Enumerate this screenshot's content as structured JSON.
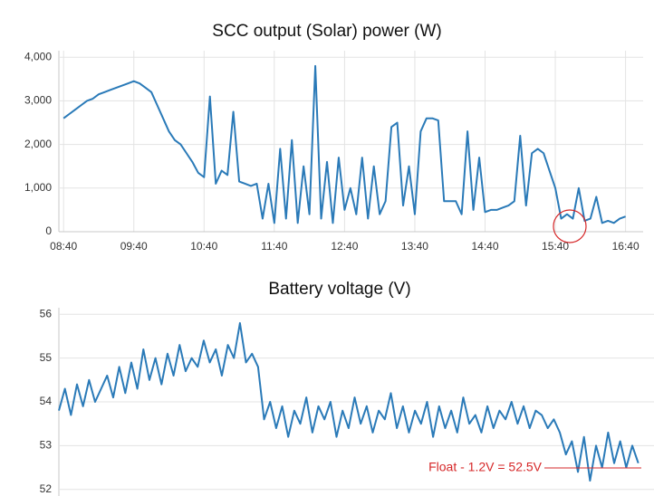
{
  "chart_data": [
    {
      "type": "line",
      "title": "SCC output (Solar) power (W)",
      "color": "#2a7ab8",
      "grid": true,
      "xlim": [
        "08:36",
        "16:55"
      ],
      "xticks": [
        "08:40",
        "09:40",
        "10:40",
        "11:40",
        "12:40",
        "13:40",
        "14:40",
        "15:40",
        "16:40"
      ],
      "ylim": [
        0,
        4150
      ],
      "yticks": [
        0,
        {
          "value": 1000,
          "label": "1,000"
        },
        {
          "value": 2000,
          "label": "2,000"
        },
        {
          "value": 3000,
          "label": "3,000"
        },
        {
          "value": 4000,
          "label": "4,000"
        }
      ],
      "x": [
        "08:40",
        "08:45",
        "08:50",
        "08:55",
        "09:00",
        "09:05",
        "09:10",
        "09:15",
        "09:20",
        "09:25",
        "09:30",
        "09:35",
        "09:40",
        "09:45",
        "09:50",
        "09:55",
        "10:00",
        "10:05",
        "10:10",
        "10:15",
        "10:20",
        "10:25",
        "10:30",
        "10:35",
        "10:40",
        "10:45",
        "10:50",
        "10:55",
        "11:00",
        "11:05",
        "11:10",
        "11:15",
        "11:20",
        "11:25",
        "11:30",
        "11:35",
        "11:40",
        "11:45",
        "11:50",
        "11:55",
        "12:00",
        "12:05",
        "12:10",
        "12:15",
        "12:20",
        "12:25",
        "12:30",
        "12:35",
        "12:40",
        "12:45",
        "12:50",
        "12:55",
        "13:00",
        "13:05",
        "13:10",
        "13:15",
        "13:20",
        "13:25",
        "13:30",
        "13:35",
        "13:40",
        "13:45",
        "13:50",
        "13:55",
        "14:00",
        "14:05",
        "14:10",
        "14:15",
        "14:20",
        "14:25",
        "14:30",
        "14:35",
        "14:40",
        "14:45",
        "14:50",
        "14:55",
        "15:00",
        "15:05",
        "15:10",
        "15:15",
        "15:20",
        "15:25",
        "15:30",
        "15:35",
        "15:40",
        "15:45",
        "15:50",
        "15:55",
        "16:00",
        "16:05",
        "16:10",
        "16:15",
        "16:20",
        "16:25",
        "16:30",
        "16:35",
        "16:40"
      ],
      "values": [
        2600,
        2700,
        2800,
        2900,
        3000,
        3050,
        3150,
        3200,
        3250,
        3300,
        3350,
        3400,
        3450,
        3400,
        3300,
        3200,
        2900,
        2600,
        2300,
        2100,
        2000,
        1800,
        1600,
        1350,
        1250,
        3100,
        1100,
        1400,
        1300,
        2750,
        1150,
        1100,
        1050,
        1100,
        300,
        1100,
        200,
        1900,
        300,
        2100,
        200,
        1500,
        400,
        3800,
        300,
        1600,
        200,
        1700,
        500,
        1000,
        400,
        1700,
        300,
        1500,
        400,
        700,
        2400,
        2500,
        600,
        1500,
        400,
        2300,
        2600,
        2600,
        2550,
        700,
        700,
        700,
        400,
        2300,
        500,
        1700,
        450,
        500,
        500,
        550,
        600,
        700,
        2200,
        600,
        1800,
        1900,
        1800,
        1400,
        1000,
        300,
        400,
        300,
        1000,
        250,
        300,
        800,
        200,
        250,
        200,
        300,
        350
      ]
    },
    {
      "type": "line",
      "title": "Battery voltage (V)",
      "color": "#2a7ab8",
      "grid": true,
      "xlim": [
        "08:40",
        "16:53"
      ],
      "ylim": [
        51.85,
        56.15
      ],
      "yticks": [
        52,
        53,
        54,
        55,
        56
      ],
      "annotation": "Float - 1.2V = 52.5V",
      "x": [
        "08:40",
        "08:45",
        "08:50",
        "08:55",
        "09:00",
        "09:05",
        "09:10",
        "09:15",
        "09:20",
        "09:25",
        "09:30",
        "09:35",
        "09:40",
        "09:45",
        "09:50",
        "09:55",
        "10:00",
        "10:05",
        "10:10",
        "10:15",
        "10:20",
        "10:25",
        "10:30",
        "10:35",
        "10:40",
        "10:45",
        "10:50",
        "10:55",
        "11:00",
        "11:05",
        "11:10",
        "11:15",
        "11:20",
        "11:25",
        "11:30",
        "11:35",
        "11:40",
        "11:45",
        "11:50",
        "11:55",
        "12:00",
        "12:05",
        "12:10",
        "12:15",
        "12:20",
        "12:25",
        "12:30",
        "12:35",
        "12:40",
        "12:45",
        "12:50",
        "12:55",
        "13:00",
        "13:05",
        "13:10",
        "13:15",
        "13:20",
        "13:25",
        "13:30",
        "13:35",
        "13:40",
        "13:45",
        "13:50",
        "13:55",
        "14:00",
        "14:05",
        "14:10",
        "14:15",
        "14:20",
        "14:25",
        "14:30",
        "14:35",
        "14:40",
        "14:45",
        "14:50",
        "14:55",
        "15:00",
        "15:05",
        "15:10",
        "15:15",
        "15:20",
        "15:25",
        "15:30",
        "15:35",
        "15:40",
        "15:45",
        "15:50",
        "15:55",
        "16:00",
        "16:05",
        "16:10",
        "16:15",
        "16:20",
        "16:25",
        "16:30",
        "16:35",
        "16:40"
      ],
      "values": [
        53.8,
        54.3,
        53.7,
        54.4,
        53.9,
        54.5,
        54.0,
        54.3,
        54.6,
        54.1,
        54.8,
        54.2,
        54.9,
        54.3,
        55.2,
        54.5,
        55.0,
        54.4,
        55.1,
        54.6,
        55.3,
        54.7,
        55.0,
        54.8,
        55.4,
        54.9,
        55.2,
        54.6,
        55.3,
        55.0,
        55.8,
        54.9,
        55.1,
        54.8,
        53.6,
        54.0,
        53.4,
        53.9,
        53.2,
        53.8,
        53.5,
        54.1,
        53.3,
        53.9,
        53.6,
        54.0,
        53.2,
        53.8,
        53.4,
        54.1,
        53.5,
        53.9,
        53.3,
        53.8,
        53.6,
        54.2,
        53.4,
        53.9,
        53.3,
        53.8,
        53.5,
        54.0,
        53.2,
        53.9,
        53.4,
        53.8,
        53.3,
        54.1,
        53.5,
        53.7,
        53.3,
        53.9,
        53.4,
        53.8,
        53.6,
        54.0,
        53.5,
        53.9,
        53.4,
        53.8,
        53.7,
        53.4,
        53.6,
        53.3,
        52.8,
        53.1,
        52.4,
        53.2,
        52.2,
        53.0,
        52.5,
        53.3,
        52.6,
        53.1,
        52.5,
        53.0,
        52.6
      ]
    }
  ]
}
